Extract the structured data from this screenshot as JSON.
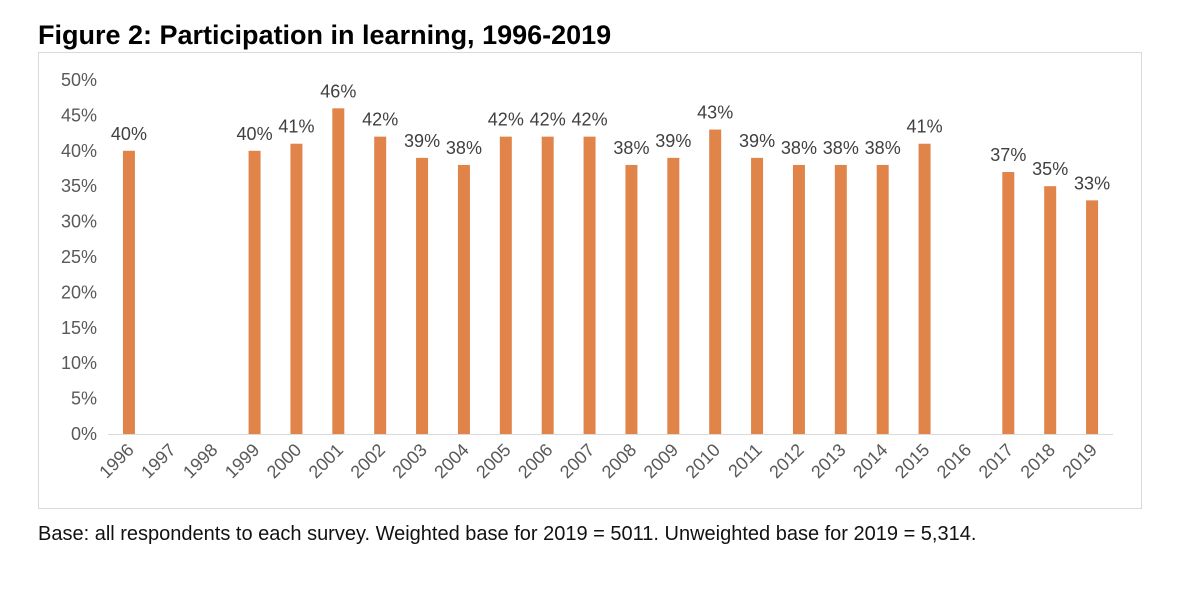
{
  "figure": {
    "title": "Figure 2: Participation in learning, 1996-2019",
    "caption": "Base: all respondents to each survey. Weighted base for 2019 = 5011. Unweighted base for 2019 = 5,314."
  },
  "chart_data": {
    "type": "bar",
    "title": "Figure 2: Participation in learning, 1996-2019",
    "categories": [
      "1996",
      "1997",
      "1998",
      "1999",
      "2000",
      "2001",
      "2002",
      "2003",
      "2004",
      "2005",
      "2006",
      "2007",
      "2008",
      "2009",
      "2010",
      "2011",
      "2012",
      "2013",
      "2014",
      "2015",
      "2016",
      "2017",
      "2018",
      "2019"
    ],
    "values": [
      40,
      null,
      null,
      40,
      41,
      46,
      42,
      39,
      38,
      42,
      42,
      42,
      38,
      39,
      43,
      39,
      38,
      38,
      38,
      41,
      null,
      37,
      35,
      33
    ],
    "data_labels": [
      "40%",
      "",
      "",
      "40%",
      "41%",
      "46%",
      "42%",
      "39%",
      "38%",
      "42%",
      "42%",
      "42%",
      "38%",
      "39%",
      "43%",
      "39%",
      "38%",
      "38%",
      "38%",
      "41%",
      "",
      "37%",
      "35%",
      "33%"
    ],
    "ylim": [
      0,
      50
    ],
    "y_ticks": [
      0,
      5,
      10,
      15,
      20,
      25,
      30,
      35,
      40,
      45,
      50
    ],
    "y_tick_labels": [
      "0%",
      "5%",
      "10%",
      "15%",
      "20%",
      "25%",
      "30%",
      "35%",
      "40%",
      "45%",
      "50%"
    ],
    "xlabel": "",
    "ylabel": "",
    "grid": false,
    "legend": "none",
    "bar_color": "#E0844A",
    "axis_color": "#d9d9d9"
  }
}
